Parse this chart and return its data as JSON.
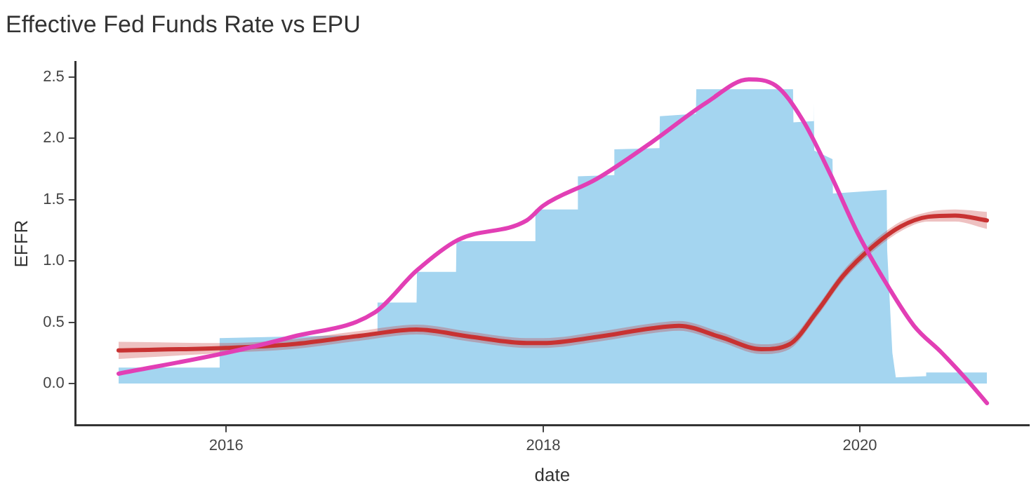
{
  "chart_data": {
    "type": "area",
    "title": "Effective Fed Funds Rate vs EPU",
    "xlabel": "date",
    "ylabel": "EFFR",
    "xlim": [
      "2015-01-19",
      "2021-01-25"
    ],
    "xticks": [
      "2016",
      "2018",
      "2020"
    ],
    "ylim": [
      -0.34,
      2.62
    ],
    "yticks": [
      {
        "value": 0,
        "label": "0.0"
      },
      0.5,
      {
        "value": 1,
        "label": "1.0"
      },
      1.5,
      {
        "value": 2,
        "label": "2.0"
      },
      2.5
    ],
    "grid": false,
    "legend": false,
    "series": [
      {
        "color": "#a4d5f0",
        "x": [
          "2015-04-28",
          "2015-12-16",
          "2015-12-17",
          "2016-12-14",
          "2016-12-15",
          "2017-03-15",
          "2017-03-16",
          "2017-06-14",
          "2017-06-15",
          "2017-12-13",
          "2017-12-14",
          "2018-03-21",
          "2018-03-22",
          "2018-06-13",
          "2018-06-14",
          "2018-09-26",
          "2018-09-27",
          "2018-12-19",
          "2018-12-20",
          "2019-07-31",
          "2019-08-01",
          "2019-09-16",
          "2019-09-17",
          "2019-09-18",
          "2019-10-30",
          "2019-10-31",
          "2020-03-03",
          "2020-03-04",
          "2020-03-16",
          "2020-03-24",
          "2020-06-01",
          "2020-06-02",
          "2020-10-20"
        ],
        "values": [
          0.13,
          0.13,
          0.37,
          0.4,
          0.66,
          0.66,
          0.91,
          0.91,
          1.16,
          1.16,
          1.42,
          1.42,
          1.69,
          1.7,
          1.91,
          1.92,
          2.18,
          2.2,
          2.4,
          2.4,
          2.13,
          2.14,
          2.3,
          1.9,
          1.83,
          1.55,
          1.58,
          1.09,
          0.25,
          0.05,
          0.06,
          0.09,
          0.09
        ]
      },
      {
        "type": "line",
        "color": "#e23fb5",
        "x": [
          "2015-04-28",
          "2016-01-01",
          "2016-06-01",
          "2016-12-09",
          "2017-03-15",
          "2017-06-18",
          "2017-11-24",
          "2018-01-01",
          "2018-05-05",
          "2018-09-09",
          "2019-01-12",
          "2019-04-20",
          "2019-06-21",
          "2019-08-22",
          "2019-10-26",
          "2019-12-28",
          "2020-03-03",
          "2020-05-05",
          "2020-07-08",
          "2020-09-09",
          "2020-10-20"
        ],
        "values": [
          0.08,
          0.25,
          0.38,
          0.58,
          0.92,
          1.17,
          1.33,
          1.45,
          1.67,
          1.97,
          2.29,
          2.48,
          2.43,
          2.15,
          1.7,
          1.22,
          0.81,
          0.47,
          0.25,
          0.01,
          -0.16
        ]
      },
      {
        "type": "line",
        "color": "#c83232",
        "x": [
          "2015-04-28",
          "2016-01-01",
          "2016-06-01",
          "2016-11-07",
          "2017-03-15",
          "2017-07-20",
          "2017-11-24",
          "2018-01-01",
          "2018-05-05",
          "2018-09-09",
          "2018-11-10",
          "2019-02-13",
          "2019-05-19",
          "2019-07-23",
          "2019-09-23",
          "2019-11-24",
          "2020-01-29",
          "2020-04-04",
          "2020-06-07",
          "2020-08-08",
          "2020-10-20"
        ],
        "values": [
          0.27,
          0.29,
          0.32,
          0.39,
          0.44,
          0.38,
          0.33,
          0.33,
          0.38,
          0.45,
          0.47,
          0.38,
          0.28,
          0.32,
          0.58,
          0.88,
          1.11,
          1.28,
          1.36,
          1.37,
          1.33
        ],
        "lower": [
          0.2,
          0.25,
          0.28,
          0.35,
          0.4,
          0.34,
          0.29,
          0.29,
          0.34,
          0.41,
          0.43,
          0.34,
          0.24,
          0.28,
          0.54,
          0.84,
          1.07,
          1.24,
          1.32,
          1.32,
          1.26
        ],
        "upper": [
          0.34,
          0.33,
          0.36,
          0.43,
          0.48,
          0.42,
          0.37,
          0.37,
          0.42,
          0.49,
          0.51,
          0.42,
          0.32,
          0.36,
          0.62,
          0.92,
          1.15,
          1.32,
          1.4,
          1.42,
          1.4
        ]
      }
    ]
  }
}
